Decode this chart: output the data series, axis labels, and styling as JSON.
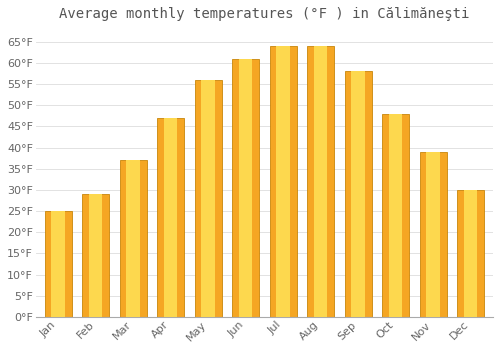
{
  "title": "Average monthly temperatures (°F ) in Călimăneşti",
  "months": [
    "Jan",
    "Feb",
    "Mar",
    "Apr",
    "May",
    "Jun",
    "Jul",
    "Aug",
    "Sep",
    "Oct",
    "Nov",
    "Dec"
  ],
  "values": [
    25,
    29,
    37,
    47,
    56,
    61,
    64,
    64,
    58,
    48,
    39,
    30
  ],
  "bar_color_outer": "#F5A623",
  "bar_color_inner": "#FDD84E",
  "bar_edge_color": "#C8860A",
  "background_color": "#FFFFFF",
  "plot_bg_color": "#FFFFFF",
  "grid_color": "#DDDDDD",
  "ylim": [
    0,
    68
  ],
  "yticks": [
    0,
    5,
    10,
    15,
    20,
    25,
    30,
    35,
    40,
    45,
    50,
    55,
    60,
    65
  ],
  "title_fontsize": 10,
  "tick_fontsize": 8,
  "title_color": "#555555",
  "tick_color": "#666666"
}
